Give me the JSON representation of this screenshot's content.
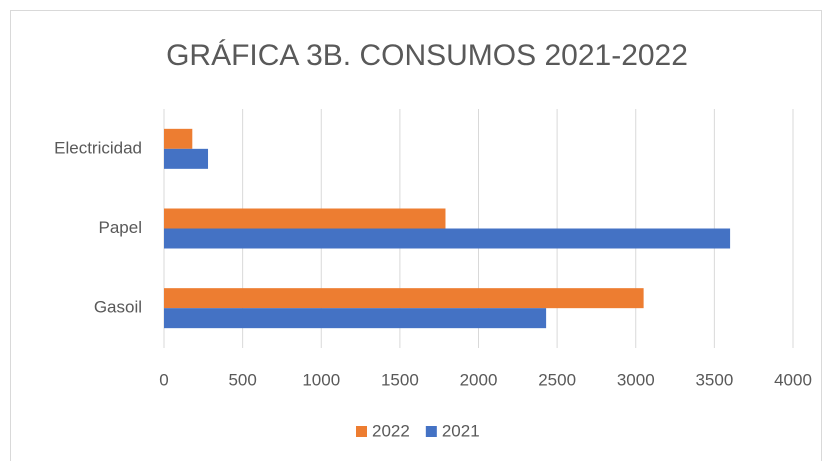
{
  "chart_data": {
    "type": "hbar",
    "title": "GRÁFICA 3B. CONSUMOS 2021-2022",
    "categories": [
      "Electricidad",
      "Papel",
      "Gasoil"
    ],
    "series": [
      {
        "name": "2022",
        "color": "#ed7d31",
        "values": [
          180,
          1790,
          3050
        ]
      },
      {
        "name": "2021",
        "color": "#4472c4",
        "values": [
          280,
          3600,
          2430
        ]
      }
    ],
    "xlim": [
      0,
      4000
    ],
    "xticks": [
      0,
      500,
      1000,
      1500,
      2000,
      2500,
      3000,
      3500,
      4000
    ],
    "grid": true,
    "legend": "bottom"
  }
}
